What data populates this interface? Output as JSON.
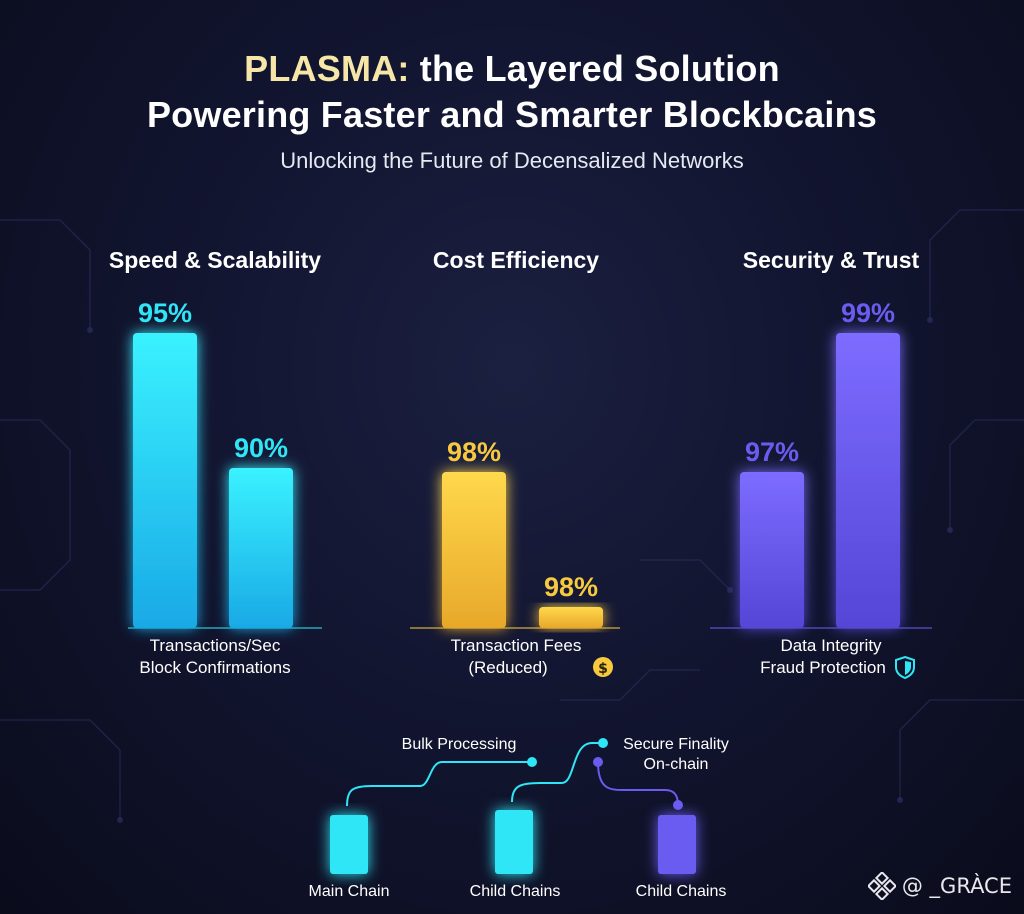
{
  "header": {
    "title_line1_accent": "PLASMA:",
    "title_line1_rest": " the Layered Solution",
    "title_line2": "Powering Faster and Smarter Blockbcains",
    "subtitle": "Unlocking the Future of Decensalized Networks"
  },
  "chart_data": [
    {
      "type": "bar",
      "title": "Speed & Scalability",
      "categories": [
        "Transactions/Sec",
        "Block Confirmations"
      ],
      "values": [
        95,
        90
      ],
      "value_labels": [
        "95%",
        "90%"
      ],
      "xlabel_lines": [
        "Transactions/Sec",
        "Block Confirmations"
      ],
      "color": "#2ee6f5",
      "grid": false
    },
    {
      "type": "bar",
      "title": "Cost Efficiency",
      "categories": [
        "Transaction Fees",
        "(Reduced)"
      ],
      "values": [
        98,
        98
      ],
      "value_labels": [
        "98%",
        "98%"
      ],
      "xlabel_lines": [
        "Transaction Fees",
        "(Reduced)"
      ],
      "color": "#f7c93e",
      "icon": "dollar-coin-icon",
      "grid": false
    },
    {
      "type": "bar",
      "title": "Security & Trust",
      "categories": [
        "Data Integrity",
        "Fraud Protection"
      ],
      "values": [
        97,
        99
      ],
      "value_labels": [
        "97%",
        "99%"
      ],
      "xlabel_lines": [
        "Data Integrity",
        "Fraud Protection"
      ],
      "color": "#6b5cf0",
      "icon": "shield-icon",
      "grid": false
    }
  ],
  "diagram": {
    "nodes": [
      "Main Chain",
      "Child Chains",
      "Child Chains"
    ],
    "annotations": [
      "Bulk Processing",
      "Secure Finality",
      "On-chain"
    ],
    "colors": [
      "#2ee6f5",
      "#2ee6f5",
      "#6b5cf0"
    ]
  },
  "watermark": {
    "text": "@ _GRÀCE",
    "icon": "binance-logo-icon"
  }
}
